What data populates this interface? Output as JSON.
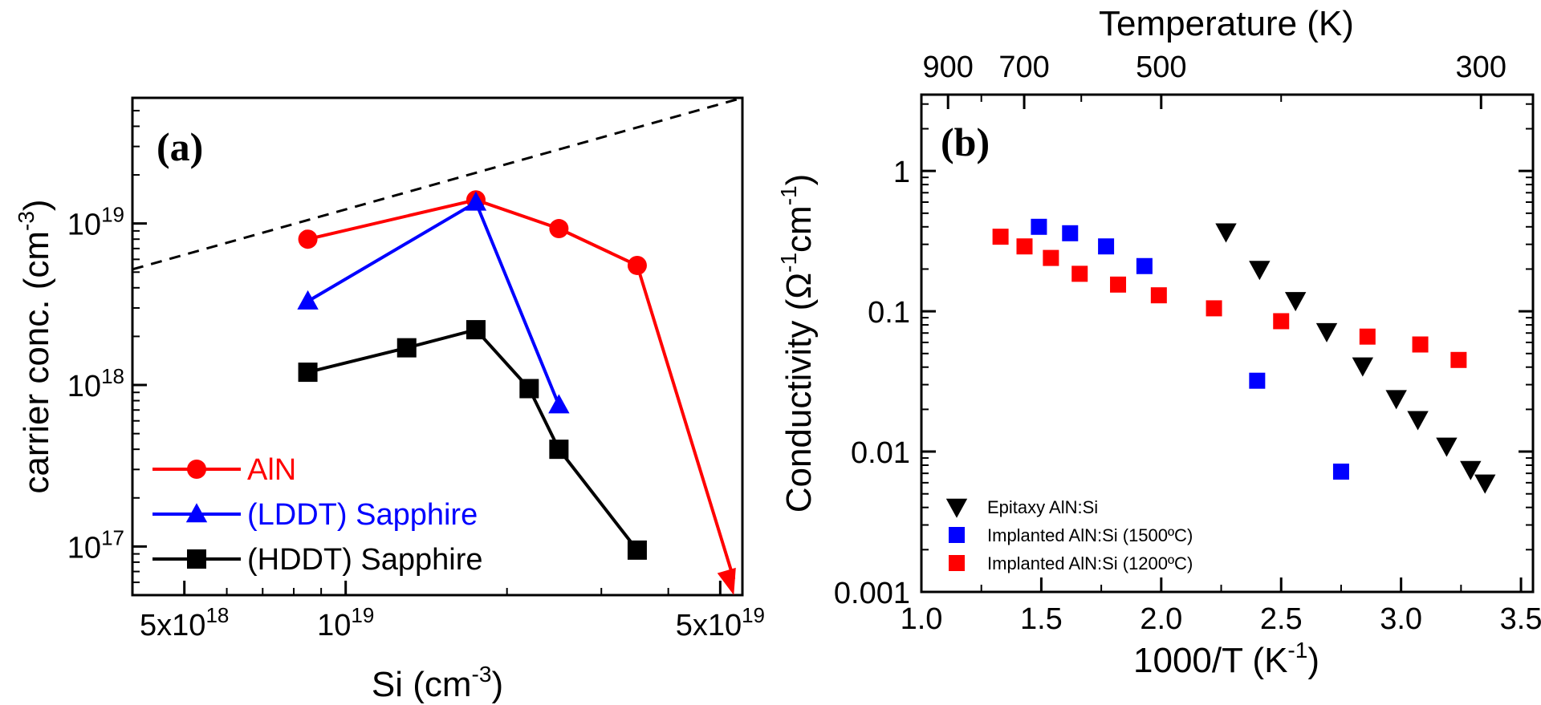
{
  "chart_data": [
    {
      "type": "line",
      "panel_label": "(a)",
      "xlabel": "Si (cm",
      "xlabel_sup": "-3",
      "xlabel_end": ")",
      "ylabel": "carrier conc. (cm",
      "ylabel_sup": "-3",
      "ylabel_end": ")",
      "x_scale": "log",
      "y_scale": "log",
      "xlim": [
        4e+18,
        5.5e+19
      ],
      "ylim": [
        5e+16,
        6e+19
      ],
      "x_ticks": [
        {
          "value": 5e+18,
          "mant": "5x10",
          "exp": "18"
        },
        {
          "value": 1e+19,
          "mant": "10",
          "exp": "19"
        },
        {
          "value": 5e+19,
          "mant": "5x10",
          "exp": "19"
        }
      ],
      "y_ticks": [
        {
          "value": 1e+17,
          "mant": "10",
          "exp": "17"
        },
        {
          "value": 1e+18,
          "mant": "10",
          "exp": "18"
        },
        {
          "value": 1e+19,
          "mant": "10",
          "exp": "19"
        }
      ],
      "reference_line": {
        "style": "dashed",
        "x": [
          4e+18,
          5.5e+19
        ],
        "y": [
          5.2e+18,
          6e+19
        ]
      },
      "series": [
        {
          "name": "AlN",
          "color": "#ff0000",
          "marker": "circle",
          "x": [
            8.5e+18,
            1.75e+19,
            2.5e+19,
            3.5e+19
          ],
          "y": [
            8e+18,
            1.4e+19,
            9.3e+18,
            5.5e+18
          ]
        },
        {
          "name": "(LDDT) Sapphire",
          "color": "#0000ff",
          "marker": "triangle",
          "x": [
            8.5e+18,
            1.75e+19,
            2.5e+19
          ],
          "y": [
            3.3e+18,
            1.35e+19,
            7.5e+17
          ]
        },
        {
          "name": "(HDDT) Sapphire",
          "color": "#000000",
          "marker": "square",
          "x": [
            8.5e+18,
            1.3e+19,
            1.75e+19,
            2.2e+19,
            2.5e+19,
            3.5e+19
          ],
          "y": [
            1.2e+18,
            1.7e+18,
            2.2e+18,
            9.5e+17,
            4e+17,
            9.5e+16
          ]
        }
      ],
      "arrow": {
        "color": "#ff0000",
        "from": {
          "x": 3.5e+19,
          "y": 5.5e+18
        },
        "to": {
          "x": 5.3e+19,
          "y": 5e+16
        }
      },
      "legend_position": "bottom-left",
      "grid": false
    },
    {
      "type": "scatter",
      "panel_label": "(b)",
      "xlabel": "1000/T (K",
      "xlabel_sup": "-1",
      "xlabel_end": ")",
      "ylabel": "Conductivity (Ω",
      "ylabel_sup1": "-1",
      "ylabel_mid": "cm",
      "ylabel_sup2": "-1",
      "ylabel_end": ")",
      "top_xlabel": "Temperature (K)",
      "y_scale": "log",
      "xlim": [
        1.0,
        3.55
      ],
      "ylim": [
        0.001,
        3.5
      ],
      "x_ticks": [
        "1.0",
        "1.5",
        "2.0",
        "2.5",
        "3.0",
        "3.5"
      ],
      "y_ticks": [
        "1",
        "0.1",
        "0.01",
        "0.001"
      ],
      "top_ticks": [
        "900",
        "700",
        "500",
        "300"
      ],
      "series": [
        {
          "name": "Epitaxy AlN:Si",
          "color": "#000000",
          "marker": "triangle-down",
          "x": [
            2.27,
            2.41,
            2.56,
            2.69,
            2.84,
            2.98,
            3.07,
            3.19,
            3.29,
            3.35
          ],
          "y": [
            0.37,
            0.2,
            0.12,
            0.072,
            0.041,
            0.024,
            0.017,
            0.011,
            0.0075,
            0.006
          ]
        },
        {
          "name": "Implanted AlN:Si (1500ºC)",
          "color": "#0000ff",
          "marker": "square",
          "x": [
            1.49,
            1.62,
            1.77,
            1.93,
            2.4,
            2.75
          ],
          "y": [
            0.4,
            0.36,
            0.29,
            0.21,
            0.032,
            0.0072
          ]
        },
        {
          "name": "Implanted AlN:Si (1200ºC)",
          "color": "#ff0000",
          "marker": "square",
          "x": [
            1.33,
            1.43,
            1.54,
            1.66,
            1.82,
            1.99,
            2.22,
            2.5,
            2.86,
            3.08,
            3.24
          ],
          "y": [
            0.34,
            0.29,
            0.24,
            0.185,
            0.155,
            0.13,
            0.105,
            0.085,
            0.066,
            0.058,
            0.045
          ]
        }
      ],
      "legend_position": "bottom-left",
      "grid": false
    }
  ]
}
